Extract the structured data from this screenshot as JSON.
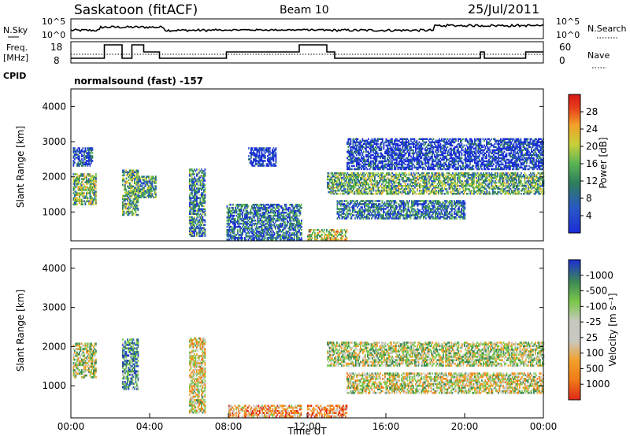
{
  "header": {
    "station": "Saskatoon (fitACF)",
    "beam": "Beam 10",
    "date": "25/Jul/2011"
  },
  "panels": {
    "nsky_label": "N.Sky",
    "nsky_ticks": [
      "10^5",
      "10^0"
    ],
    "nsearch_label": "N.Search",
    "nsearch_ticks": [
      "10^5",
      "10^0"
    ],
    "freq_label": "Freq.",
    "freq_unit": "[MHz]",
    "freq_ticks": [
      "18",
      "8"
    ],
    "nave_label": "Nave",
    "nave_ticks": [
      "60",
      "0"
    ],
    "cpid_label": "CPID",
    "cpid_text": "normalsound (fast) -157"
  },
  "chart_data": [
    {
      "type": "heatmap",
      "name": "power",
      "ylabel": "Slant Range [km]",
      "yticks": [
        1000,
        2000,
        3000,
        4000
      ],
      "ylim": [
        180,
        4500
      ],
      "colorbar_label": "Power [dB]",
      "colorbar_ticks": [
        "4",
        "8",
        "12",
        "16",
        "20",
        "24",
        "28"
      ],
      "colors": [
        "#1a2cd6",
        "#2a58c6",
        "#2e7e5c",
        "#5ab454",
        "#c8d03a",
        "#f2a02a",
        "#e8401a",
        "#d81818"
      ],
      "blocks": [
        {
          "t0": 0.1,
          "t1": 1.3,
          "r0": 1200,
          "r1": 2100,
          "level": 0.45
        },
        {
          "t0": 0.1,
          "t1": 1.1,
          "r0": 2300,
          "r1": 2800,
          "level": 0.15
        },
        {
          "t0": 2.6,
          "t1": 3.4,
          "r0": 900,
          "r1": 2200,
          "level": 0.4
        },
        {
          "t0": 3.2,
          "t1": 4.3,
          "r0": 1400,
          "r1": 2000,
          "level": 0.35
        },
        {
          "t0": 6.0,
          "t1": 6.8,
          "r0": 300,
          "r1": 2200,
          "level": 0.3
        },
        {
          "t0": 7.9,
          "t1": 11.7,
          "r0": 200,
          "r1": 1200,
          "level": 0.25
        },
        {
          "t0": 9.0,
          "t1": 10.4,
          "r0": 2300,
          "r1": 2800,
          "level": 0.05
        },
        {
          "t0": 12.0,
          "t1": 14.0,
          "r0": 200,
          "r1": 500,
          "level": 0.55
        },
        {
          "t0": 13.0,
          "t1": 24.0,
          "r0": 1500,
          "r1": 2100,
          "level": 0.4
        },
        {
          "t0": 13.5,
          "t1": 20.0,
          "r0": 800,
          "r1": 1300,
          "level": 0.25
        },
        {
          "t0": 14.0,
          "t1": 24.0,
          "r0": 2200,
          "r1": 3100,
          "level": 0.1
        }
      ]
    },
    {
      "type": "heatmap",
      "name": "velocity",
      "xlabel": "Time UT",
      "xticks": [
        "00:00",
        "04:00",
        "08:00",
        "12:00",
        "16:00",
        "20:00",
        "00:00"
      ],
      "ylabel": "Slant Range [km]",
      "yticks": [
        1000,
        2000,
        3000,
        4000
      ],
      "ylim": [
        180,
        4500
      ],
      "colorbar_label": "Velocity [m s⁻¹]",
      "colorbar_ticks": [
        "1000",
        "500",
        "100",
        "25",
        "-25",
        "-100",
        "-500",
        "-1000"
      ],
      "colors": [
        "#1c2fd0",
        "#2860b8",
        "#3d8a55",
        "#7cc84a",
        "#c8c8c0",
        "#f2a02a",
        "#f07a18",
        "#e02818"
      ],
      "blocks": [
        {
          "t0": 0.1,
          "t1": 1.3,
          "r0": 1200,
          "r1": 2100,
          "level": 0.5
        },
        {
          "t0": 2.6,
          "t1": 3.4,
          "r0": 900,
          "r1": 2200,
          "level": 0.3
        },
        {
          "t0": 6.0,
          "t1": 6.8,
          "r0": 300,
          "r1": 2200,
          "level": 0.6
        },
        {
          "t0": 8.0,
          "t1": 11.7,
          "r0": 200,
          "r1": 500,
          "level": 0.72
        },
        {
          "t0": 12.0,
          "t1": 14.0,
          "r0": 200,
          "r1": 500,
          "level": 0.75
        },
        {
          "t0": 13.0,
          "t1": 24.0,
          "r0": 1500,
          "r1": 2100,
          "level": 0.5
        },
        {
          "t0": 14.0,
          "t1": 24.0,
          "r0": 800,
          "r1": 1300,
          "level": 0.55
        }
      ]
    }
  ]
}
